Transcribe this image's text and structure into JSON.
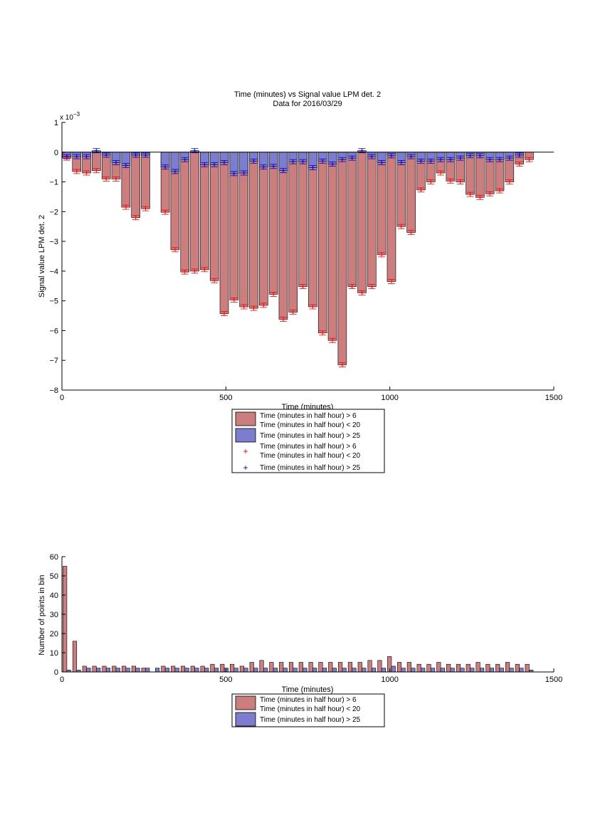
{
  "chart_data": [
    {
      "type": "bar",
      "title": "Time (minutes) vs Signal value LPM det. 2",
      "subtitle": "Data for 2016/03/29",
      "xlabel": "Time (minutes)",
      "ylabel": "Signal value LPM det. 2",
      "y_multiplier": "x 10^-3",
      "xlim": [
        0,
        1500
      ],
      "ylim": [
        -8,
        1
      ],
      "x_ticks": [
        "0",
        "500",
        "1000",
        "1500"
      ],
      "y_ticks": [
        "1",
        "0",
        "−1",
        "−2",
        "−3",
        "−4",
        "−5",
        "−6",
        "−7",
        "−8"
      ],
      "grid": false,
      "legend_position": "below",
      "legend": [
        "Time (minutes in half hour) > 6",
        "Time (minutes in half hour) < 20",
        "Time (minutes in half hour) > 25",
        "Time (minutes in half hour) > 6",
        "Time (minutes in half hour) < 20",
        "Time (minutes in half hour) > 25"
      ],
      "colors": {
        "red_bar": "#cc7d7d",
        "blue_bar": "#7d7dd0",
        "red_marker": "#ff0000",
        "blue_marker": "#0000cc"
      },
      "x": [
        15,
        45,
        75,
        105,
        135,
        165,
        195,
        225,
        255,
        285,
        315,
        345,
        375,
        405,
        435,
        465,
        495,
        525,
        555,
        585,
        615,
        645,
        675,
        705,
        735,
        765,
        795,
        825,
        855,
        885,
        915,
        945,
        975,
        1005,
        1035,
        1065,
        1095,
        1125,
        1155,
        1185,
        1215,
        1245,
        1275,
        1305,
        1335,
        1365,
        1395,
        1425
      ],
      "series": [
        {
          "name": "Time (minutes in half hour) > 6 / < 20",
          "values": [
            -0.2,
            -0.65,
            -0.7,
            -0.62,
            -0.9,
            -0.9,
            -1.85,
            -2.2,
            -1.9,
            0.0,
            -2.02,
            -3.28,
            -4.03,
            -4.0,
            -3.95,
            -4.32,
            -5.43,
            -4.97,
            -5.2,
            -5.25,
            -5.15,
            -4.78,
            -5.62,
            -5.38,
            -4.52,
            -5.2,
            -6.08,
            -6.33,
            -7.15,
            -4.52,
            -4.73,
            -4.52,
            -3.45,
            -4.35,
            -2.5,
            -2.7,
            -1.27,
            -1.0,
            -0.7,
            -0.97,
            -1.0,
            -1.42,
            -1.52,
            -1.4,
            -1.3,
            -1.0,
            -0.4,
            -0.25
          ]
        },
        {
          "name": "Time (minutes in half hour) > 25",
          "values": [
            -0.15,
            -0.15,
            -0.15,
            0.05,
            -0.1,
            -0.35,
            -0.45,
            -0.1,
            -0.1,
            0.0,
            -0.5,
            -0.65,
            -0.25,
            0.05,
            -0.42,
            -0.42,
            -0.35,
            -0.72,
            -0.7,
            -0.3,
            -0.5,
            -0.48,
            -0.62,
            -0.32,
            -0.32,
            -0.52,
            -0.3,
            -0.4,
            -0.25,
            -0.2,
            0.05,
            -0.15,
            -0.35,
            -0.12,
            -0.35,
            -0.15,
            -0.3,
            -0.3,
            -0.25,
            -0.25,
            -0.2,
            -0.12,
            -0.12,
            -0.25,
            -0.25,
            -0.2,
            -0.1,
            0.0
          ]
        }
      ]
    },
    {
      "type": "bar",
      "title": "",
      "xlabel": "Time (minutes)",
      "ylabel": "Number of points in bin",
      "xlim": [
        0,
        1500
      ],
      "ylim": [
        0,
        60
      ],
      "x_ticks": [
        "0",
        "500",
        "1000",
        "1500"
      ],
      "y_ticks": [
        "60",
        "50",
        "40",
        "30",
        "20",
        "10",
        "0"
      ],
      "grid": false,
      "legend_position": "below",
      "legend": [
        "Time (minutes in half hour) > 6",
        "Time (minutes in half hour) < 20",
        "Time (minutes in half hour) > 25"
      ],
      "x": [
        15,
        45,
        75,
        105,
        135,
        165,
        195,
        225,
        255,
        285,
        315,
        345,
        375,
        405,
        435,
        465,
        495,
        525,
        555,
        585,
        615,
        645,
        675,
        705,
        735,
        765,
        795,
        825,
        855,
        885,
        915,
        945,
        975,
        1005,
        1035,
        1065,
        1095,
        1125,
        1155,
        1185,
        1215,
        1245,
        1275,
        1305,
        1335,
        1365,
        1395,
        1425
      ],
      "series": [
        {
          "name": "Time (minutes in half hour) > 6 / < 20",
          "values": [
            55,
            16,
            3,
            3,
            3,
            3,
            3,
            3,
            2,
            0,
            3,
            3,
            3,
            3,
            3,
            4,
            4,
            4,
            3,
            5,
            6,
            5,
            5,
            5,
            5,
            5,
            5,
            5,
            5,
            5,
            5,
            6,
            6,
            8,
            5,
            5,
            4,
            4,
            5,
            4,
            4,
            4,
            5,
            4,
            4,
            5,
            4,
            4
          ]
        },
        {
          "name": "Time (minutes in half hour) > 25",
          "values": [
            1,
            1,
            2,
            2,
            2,
            2,
            2,
            2,
            2,
            2,
            2,
            2,
            2,
            2,
            2,
            2,
            2,
            2,
            2,
            2,
            2,
            2,
            2,
            2,
            2,
            2,
            2,
            2,
            2,
            2,
            2,
            2,
            2,
            3,
            2,
            2,
            2,
            2,
            2,
            2,
            2,
            2,
            2,
            2,
            2,
            2,
            2,
            1
          ]
        }
      ]
    }
  ]
}
